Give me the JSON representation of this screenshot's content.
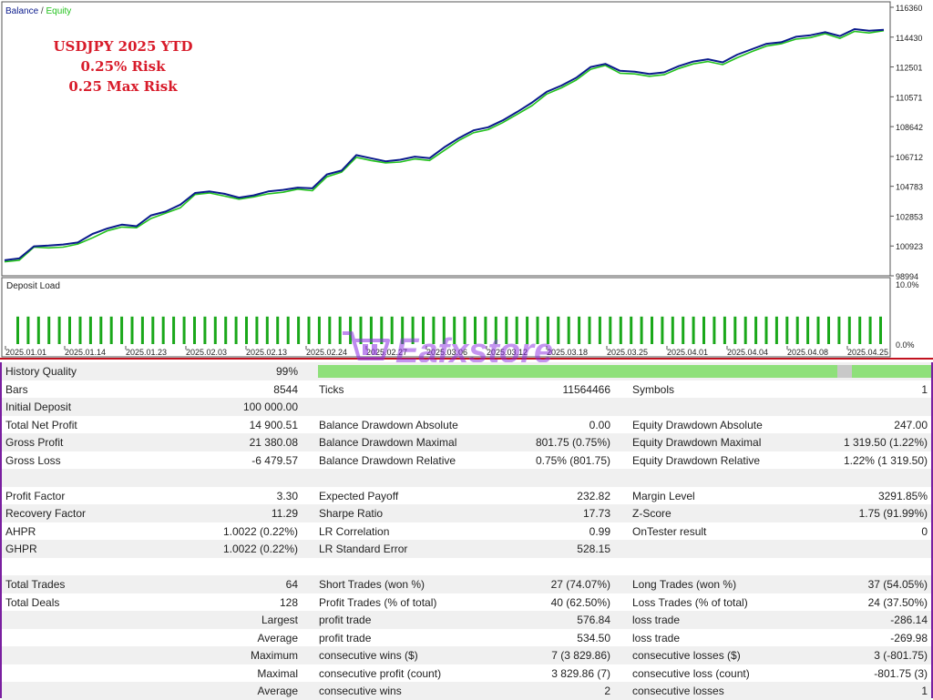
{
  "legend": {
    "balance": "Balance",
    "sep": " / ",
    "equity": "Equity"
  },
  "overlay_text": [
    "USDJPY 2025 YTD",
    "0.25% Risk",
    "0.25 Max Risk"
  ],
  "watermark": {
    "brand": "Eafxstore"
  },
  "colors": {
    "balance": "#0a1a8c",
    "equity": "#23c21d",
    "deposit_bar": "#1aa81a",
    "title": "#d81b2a",
    "frame": "#7a1fa0"
  },
  "chart_data": [
    {
      "type": "line",
      "title": "",
      "series": [
        {
          "name": "Balance",
          "values": [
            100000,
            100120,
            100900,
            100950,
            101020,
            101150,
            101700,
            102050,
            102300,
            102200,
            102900,
            103150,
            103600,
            104350,
            104450,
            104300,
            104050,
            104200,
            104450,
            104550,
            104700,
            104650,
            105550,
            105800,
            106800,
            106600,
            106400,
            106500,
            106700,
            106600,
            107300,
            107900,
            108400,
            108600,
            109050,
            109600,
            110200,
            110900,
            111300,
            111800,
            112500,
            112700,
            112250,
            112200,
            112050,
            112150,
            112550,
            112850,
            113000,
            112800,
            113300,
            113650,
            114000,
            114100,
            114450,
            114550,
            114750,
            114500,
            114950,
            114850,
            114900
          ]
        },
        {
          "name": "Equity",
          "values": [
            99900,
            100000,
            100850,
            100800,
            100850,
            101050,
            101450,
            101900,
            102150,
            102100,
            102700,
            103050,
            103400,
            104250,
            104350,
            104150,
            103950,
            104100,
            104300,
            104400,
            104600,
            104500,
            105400,
            105700,
            106650,
            106450,
            106300,
            106350,
            106550,
            106450,
            107100,
            107750,
            108250,
            108450,
            108900,
            109450,
            110000,
            110750,
            111150,
            111650,
            112350,
            112600,
            112100,
            112050,
            111900,
            112000,
            112400,
            112700,
            112850,
            112650,
            113100,
            113500,
            113850,
            114000,
            114300,
            114400,
            114650,
            114350,
            114800,
            114700,
            114850
          ]
        }
      ],
      "y_ticks": [
        "116360",
        "114430",
        "112501",
        "110571",
        "108642",
        "106712",
        "104783",
        "102853",
        "100923",
        "98994"
      ],
      "ylim": [
        98994,
        116360
      ]
    },
    {
      "type": "bar",
      "title": "Deposit Load",
      "y_ticks": [
        "10.0%",
        "0.0%"
      ],
      "x_ticks": [
        "2025.01.01",
        "2025.01.14",
        "2025.01.23",
        "2025.02.03",
        "2025.02.13",
        "2025.02.24",
        "2025.02.27",
        "2025.03.06",
        "2025.03.12",
        "2025.03.18",
        "2025.03.25",
        "2025.04.01",
        "2025.04.04",
        "2025.04.08",
        "2025.04.25"
      ],
      "ylim": [
        0,
        10
      ],
      "values": [
        3,
        3,
        3,
        3,
        3,
        3,
        3,
        3,
        3,
        3,
        3,
        3,
        3,
        3,
        3,
        3,
        3,
        3,
        3,
        3,
        3,
        3,
        3,
        3,
        3,
        3,
        3,
        3,
        3,
        3,
        3,
        3,
        3,
        3,
        3,
        3,
        3,
        3,
        3,
        3,
        3,
        3,
        3,
        3,
        3,
        3,
        3,
        3,
        3,
        3,
        3,
        3,
        3,
        3,
        3,
        3,
        3,
        3,
        3,
        3,
        3,
        3,
        3,
        3,
        3,
        3,
        3,
        3,
        3,
        3,
        3,
        3,
        3,
        3,
        3,
        3,
        3,
        3,
        3,
        3,
        3,
        3,
        3,
        3
      ]
    }
  ],
  "report": {
    "history_quality": {
      "label": "History Quality",
      "value": "99%"
    },
    "rows": [
      {
        "c1": [
          "Bars",
          "8544"
        ],
        "c2": [
          "Ticks",
          "11564466"
        ],
        "c3": [
          "Symbols",
          "1"
        ]
      },
      {
        "c1": [
          "Initial Deposit",
          "100 000.00"
        ],
        "c2": [
          "",
          ""
        ],
        "c3": [
          "",
          ""
        ]
      },
      {
        "c1": [
          "Total Net Profit",
          "14 900.51"
        ],
        "c2": [
          "Balance Drawdown Absolute",
          "0.00"
        ],
        "c3": [
          "Equity Drawdown Absolute",
          "247.00"
        ]
      },
      {
        "c1": [
          "Gross Profit",
          "21 380.08"
        ],
        "c2": [
          "Balance Drawdown Maximal",
          "801.75 (0.75%)"
        ],
        "c3": [
          "Equity Drawdown Maximal",
          "1 319.50 (1.22%)"
        ]
      },
      {
        "c1": [
          "Gross Loss",
          "-6 479.57"
        ],
        "c2": [
          "Balance Drawdown Relative",
          "0.75% (801.75)"
        ],
        "c3": [
          "Equity Drawdown Relative",
          "1.22% (1 319.50)"
        ]
      },
      {
        "c1": [
          "",
          ""
        ],
        "c2": [
          "",
          ""
        ],
        "c3": [
          "",
          ""
        ]
      },
      {
        "c1": [
          "Profit Factor",
          "3.30"
        ],
        "c2": [
          "Expected Payoff",
          "232.82"
        ],
        "c3": [
          "Margin Level",
          "3291.85%"
        ]
      },
      {
        "c1": [
          "Recovery Factor",
          "11.29"
        ],
        "c2": [
          "Sharpe Ratio",
          "17.73"
        ],
        "c3": [
          "Z-Score",
          "1.75 (91.99%)"
        ]
      },
      {
        "c1": [
          "AHPR",
          "1.0022 (0.22%)"
        ],
        "c2": [
          "LR Correlation",
          "0.99"
        ],
        "c3": [
          "OnTester result",
          "0"
        ]
      },
      {
        "c1": [
          "GHPR",
          "1.0022 (0.22%)"
        ],
        "c2": [
          "LR Standard Error",
          "528.15"
        ],
        "c3": [
          "",
          ""
        ]
      },
      {
        "c1": [
          "",
          ""
        ],
        "c2": [
          "",
          ""
        ],
        "c3": [
          "",
          ""
        ]
      },
      {
        "c1": [
          "Total Trades",
          "64"
        ],
        "c2": [
          "Short Trades (won %)",
          "27 (74.07%)"
        ],
        "c3": [
          "Long Trades (won %)",
          "37 (54.05%)"
        ]
      },
      {
        "c1": [
          "Total Deals",
          "128"
        ],
        "c2": [
          "Profit Trades (% of total)",
          "40 (62.50%)"
        ],
        "c3": [
          "Loss Trades (% of total)",
          "24 (37.50%)"
        ]
      },
      {
        "c1": [
          "",
          "Largest"
        ],
        "c2": [
          "profit trade",
          "576.84"
        ],
        "c3": [
          "loss trade",
          "-286.14"
        ]
      },
      {
        "c1": [
          "",
          "Average"
        ],
        "c2": [
          "profit trade",
          "534.50"
        ],
        "c3": [
          "loss trade",
          "-269.98"
        ]
      },
      {
        "c1": [
          "",
          "Maximum"
        ],
        "c2": [
          "consecutive wins ($)",
          "7 (3 829.86)"
        ],
        "c3": [
          "consecutive losses ($)",
          "3 (-801.75)"
        ]
      },
      {
        "c1": [
          "",
          "Maximal"
        ],
        "c2": [
          "consecutive profit (count)",
          "3 829.86 (7)"
        ],
        "c3": [
          "consecutive loss (count)",
          "-801.75 (3)"
        ]
      },
      {
        "c1": [
          "",
          "Average"
        ],
        "c2": [
          "consecutive wins",
          "2"
        ],
        "c3": [
          "consecutive losses",
          "1"
        ]
      }
    ]
  }
}
